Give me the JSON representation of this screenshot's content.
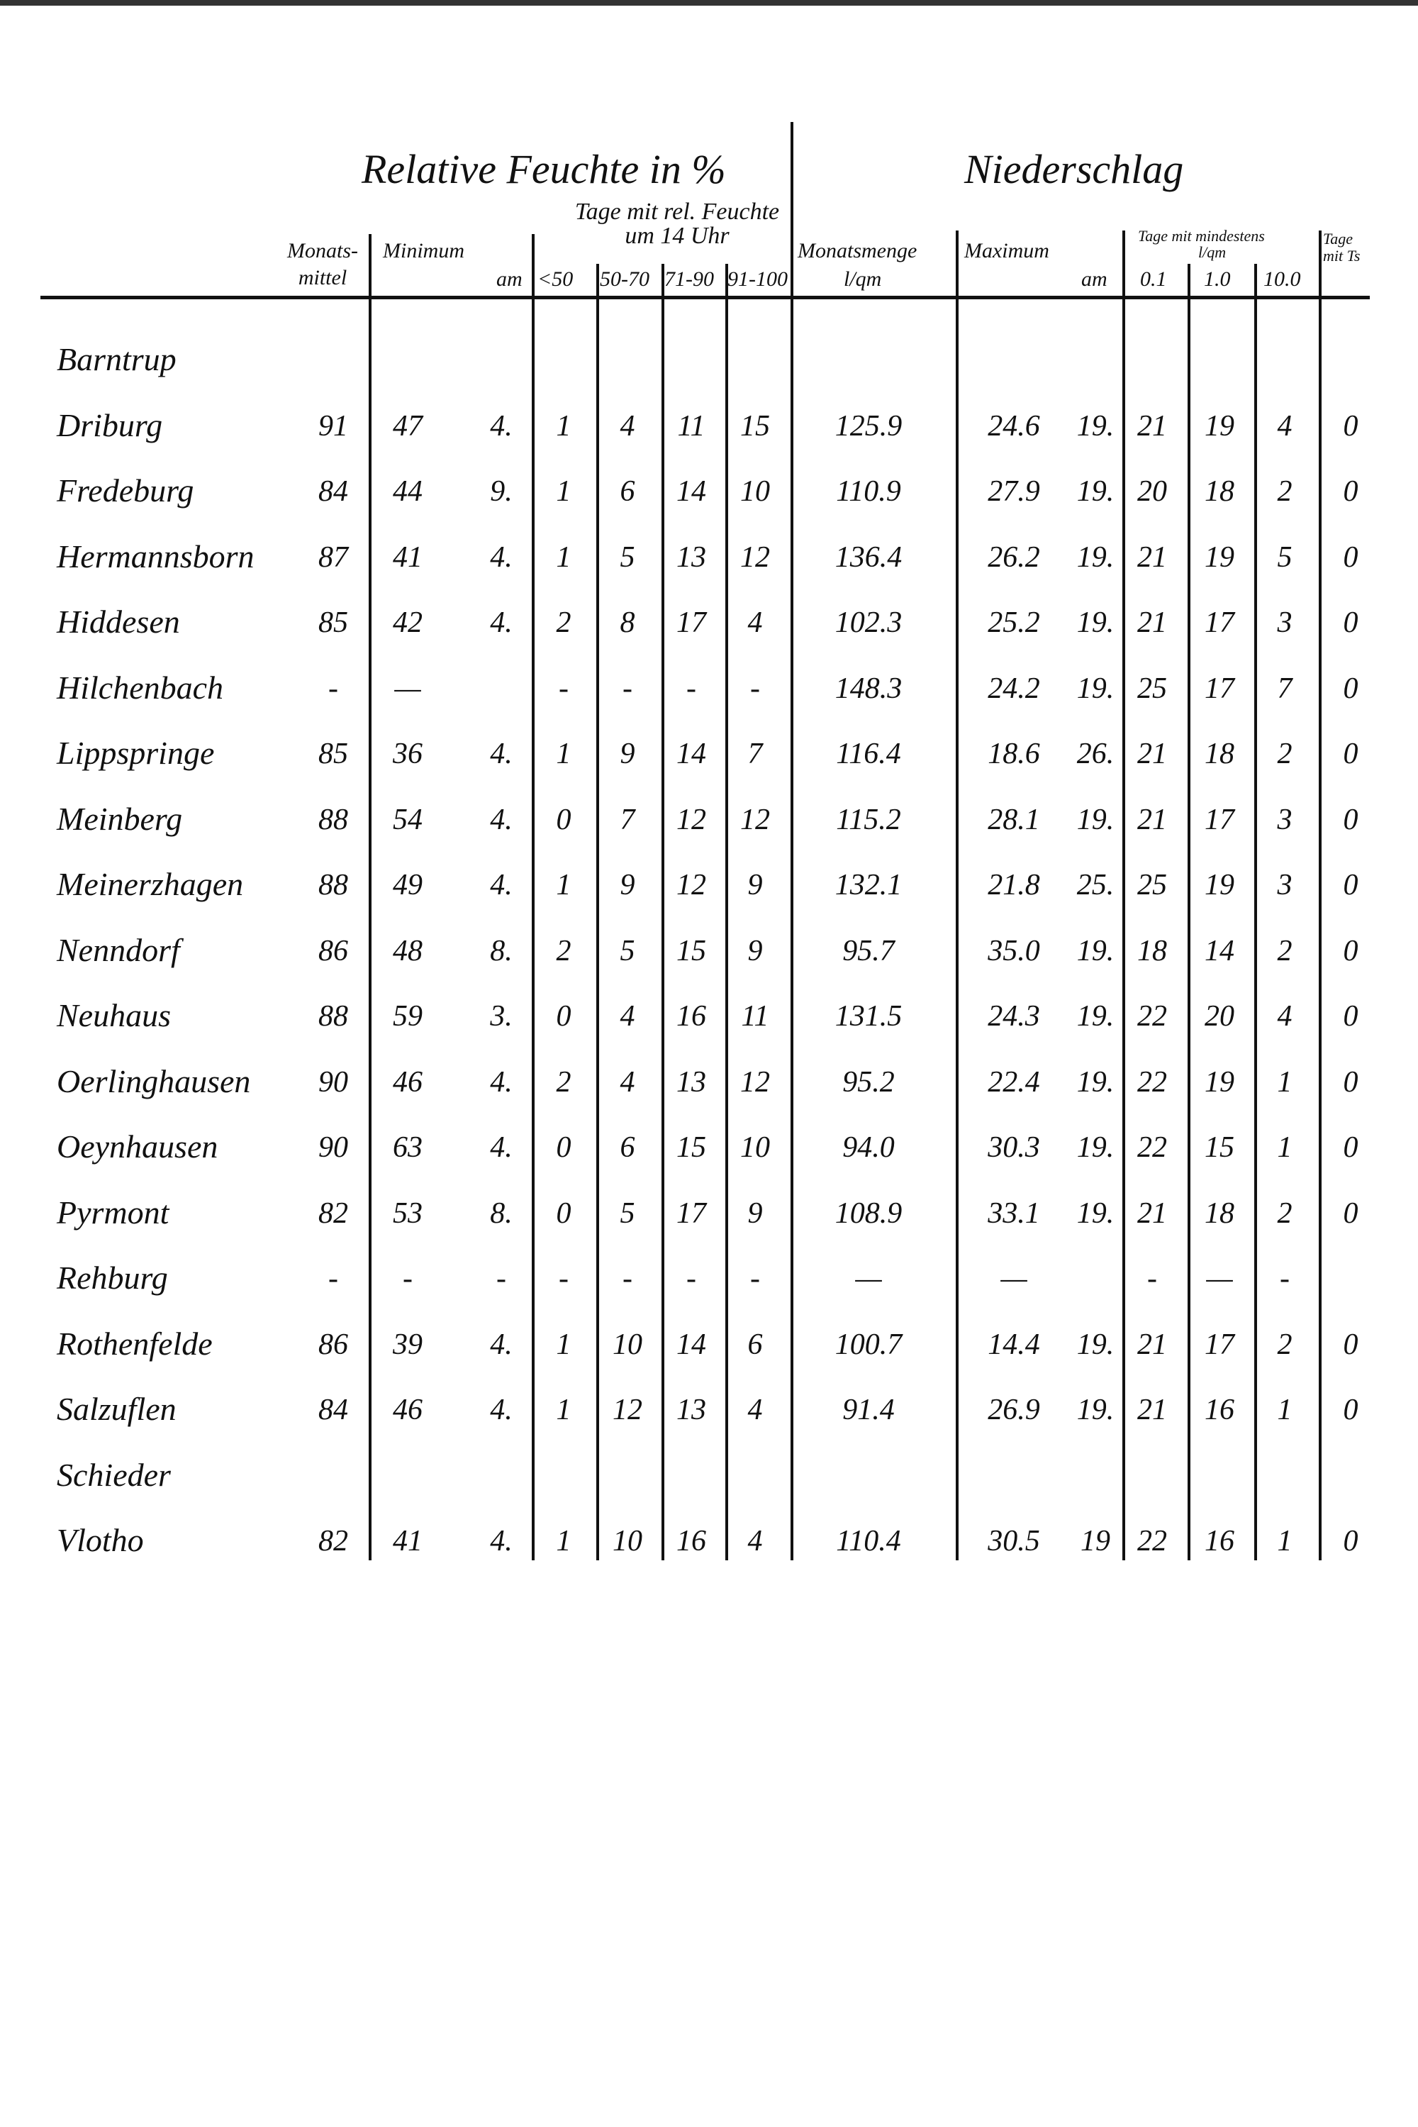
{
  "header": {
    "humidity_title": "Relative Feuchte in %",
    "humidity_days_title": "Tage mit rel. Feuchte um 14 Uhr",
    "precip_title": "Niederschlag",
    "col_monthly_mean": "Monats- mittel",
    "col_minimum": "Minimum",
    "col_min_date": "am",
    "col_lt50": "<50",
    "col_50_70": "50-70",
    "col_71_90": "71-90",
    "col_91_100": "91-100",
    "col_monthly_amount": "Monatsmenge",
    "col_monthly_amount_unit": "l/qm",
    "col_maximum": "Maximum",
    "col_max_date": "am",
    "col_days_min_title": "Tage mit mindestens",
    "col_days_min_unit": "l/qm",
    "col_0_1": "0.1",
    "col_1_0": "1.0",
    "col_10_0": "10.0",
    "col_days_with": "Tage mit Ts"
  },
  "rows": [
    {
      "station": "Barntrup",
      "cells": [
        "",
        "",
        "",
        "",
        "",
        "",
        "",
        "",
        "",
        "",
        "",
        "",
        "",
        ""
      ]
    },
    {
      "station": "Driburg",
      "cells": [
        "91",
        "47",
        "4.",
        "1",
        "4",
        "11",
        "15",
        "125.9",
        "24.6",
        "19.",
        "21",
        "19",
        "4",
        "0"
      ]
    },
    {
      "station": "Fredeburg",
      "cells": [
        "84",
        "44",
        "9.",
        "1",
        "6",
        "14",
        "10",
        "110.9",
        "27.9",
        "19.",
        "20",
        "18",
        "2",
        "0"
      ]
    },
    {
      "station": "Hermannsborn",
      "cells": [
        "87",
        "41",
        "4.",
        "1",
        "5",
        "13",
        "12",
        "136.4",
        "26.2",
        "19.",
        "21",
        "19",
        "5",
        "0"
      ]
    },
    {
      "station": "Hiddesen",
      "cells": [
        "85",
        "42",
        "4.",
        "2",
        "8",
        "17",
        "4",
        "102.3",
        "25.2",
        "19.",
        "21",
        "17",
        "3",
        "0"
      ]
    },
    {
      "station": "Hilchenbach",
      "cells": [
        "-",
        "—",
        "",
        "-",
        "-",
        "-",
        "-",
        "148.3",
        "24.2",
        "19.",
        "25",
        "17",
        "7",
        "0"
      ]
    },
    {
      "station": "Lippspringe",
      "cells": [
        "85",
        "36",
        "4.",
        "1",
        "9",
        "14",
        "7",
        "116.4",
        "18.6",
        "26.",
        "21",
        "18",
        "2",
        "0"
      ]
    },
    {
      "station": "Meinberg",
      "cells": [
        "88",
        "54",
        "4.",
        "0",
        "7",
        "12",
        "12",
        "115.2",
        "28.1",
        "19.",
        "21",
        "17",
        "3",
        "0"
      ]
    },
    {
      "station": "Meinerzhagen",
      "cells": [
        "88",
        "49",
        "4.",
        "1",
        "9",
        "12",
        "9",
        "132.1",
        "21.8",
        "25.",
        "25",
        "19",
        "3",
        "0"
      ]
    },
    {
      "station": "Nenndorf",
      "cells": [
        "86",
        "48",
        "8.",
        "2",
        "5",
        "15",
        "9",
        "95.7",
        "35.0",
        "19.",
        "18",
        "14",
        "2",
        "0"
      ]
    },
    {
      "station": "Neuhaus",
      "cells": [
        "88",
        "59",
        "3.",
        "0",
        "4",
        "16",
        "11",
        "131.5",
        "24.3",
        "19.",
        "22",
        "20",
        "4",
        "0"
      ]
    },
    {
      "station": "Oerlinghausen",
      "cells": [
        "90",
        "46",
        "4.",
        "2",
        "4",
        "13",
        "12",
        "95.2",
        "22.4",
        "19.",
        "22",
        "19",
        "1",
        "0"
      ]
    },
    {
      "station": "Oeynhausen",
      "cells": [
        "90",
        "63",
        "4.",
        "0",
        "6",
        "15",
        "10",
        "94.0",
        "30.3",
        "19.",
        "22",
        "15",
        "1",
        "0"
      ]
    },
    {
      "station": "Pyrmont",
      "cells": [
        "82",
        "53",
        "8.",
        "0",
        "5",
        "17",
        "9",
        "108.9",
        "33.1",
        "19.",
        "21",
        "18",
        "2",
        "0"
      ]
    },
    {
      "station": "Rehburg",
      "cells": [
        "-",
        "-",
        "-",
        "-",
        "-",
        "-",
        "-",
        "—",
        "—",
        "",
        "-",
        "—",
        "-",
        ""
      ]
    },
    {
      "station": "Rothenfelde",
      "cells": [
        "86",
        "39",
        "4.",
        "1",
        "10",
        "14",
        "6",
        "100.7",
        "14.4",
        "19.",
        "21",
        "17",
        "2",
        "0"
      ]
    },
    {
      "station": "Salzuflen",
      "cells": [
        "84",
        "46",
        "4.",
        "1",
        "12",
        "13",
        "4",
        "91.4",
        "26.9",
        "19.",
        "21",
        "16",
        "1",
        "0"
      ]
    },
    {
      "station": "Schieder",
      "cells": [
        "",
        "",
        "",
        "",
        "",
        "",
        "",
        "",
        "",
        "",
        "",
        "",
        "",
        ""
      ]
    },
    {
      "station": "Vlotho",
      "cells": [
        "82",
        "41",
        "4.",
        "1",
        "10",
        "16",
        "4",
        "110.4",
        "30.5",
        "19",
        "22",
        "16",
        "1",
        "0"
      ]
    }
  ]
}
